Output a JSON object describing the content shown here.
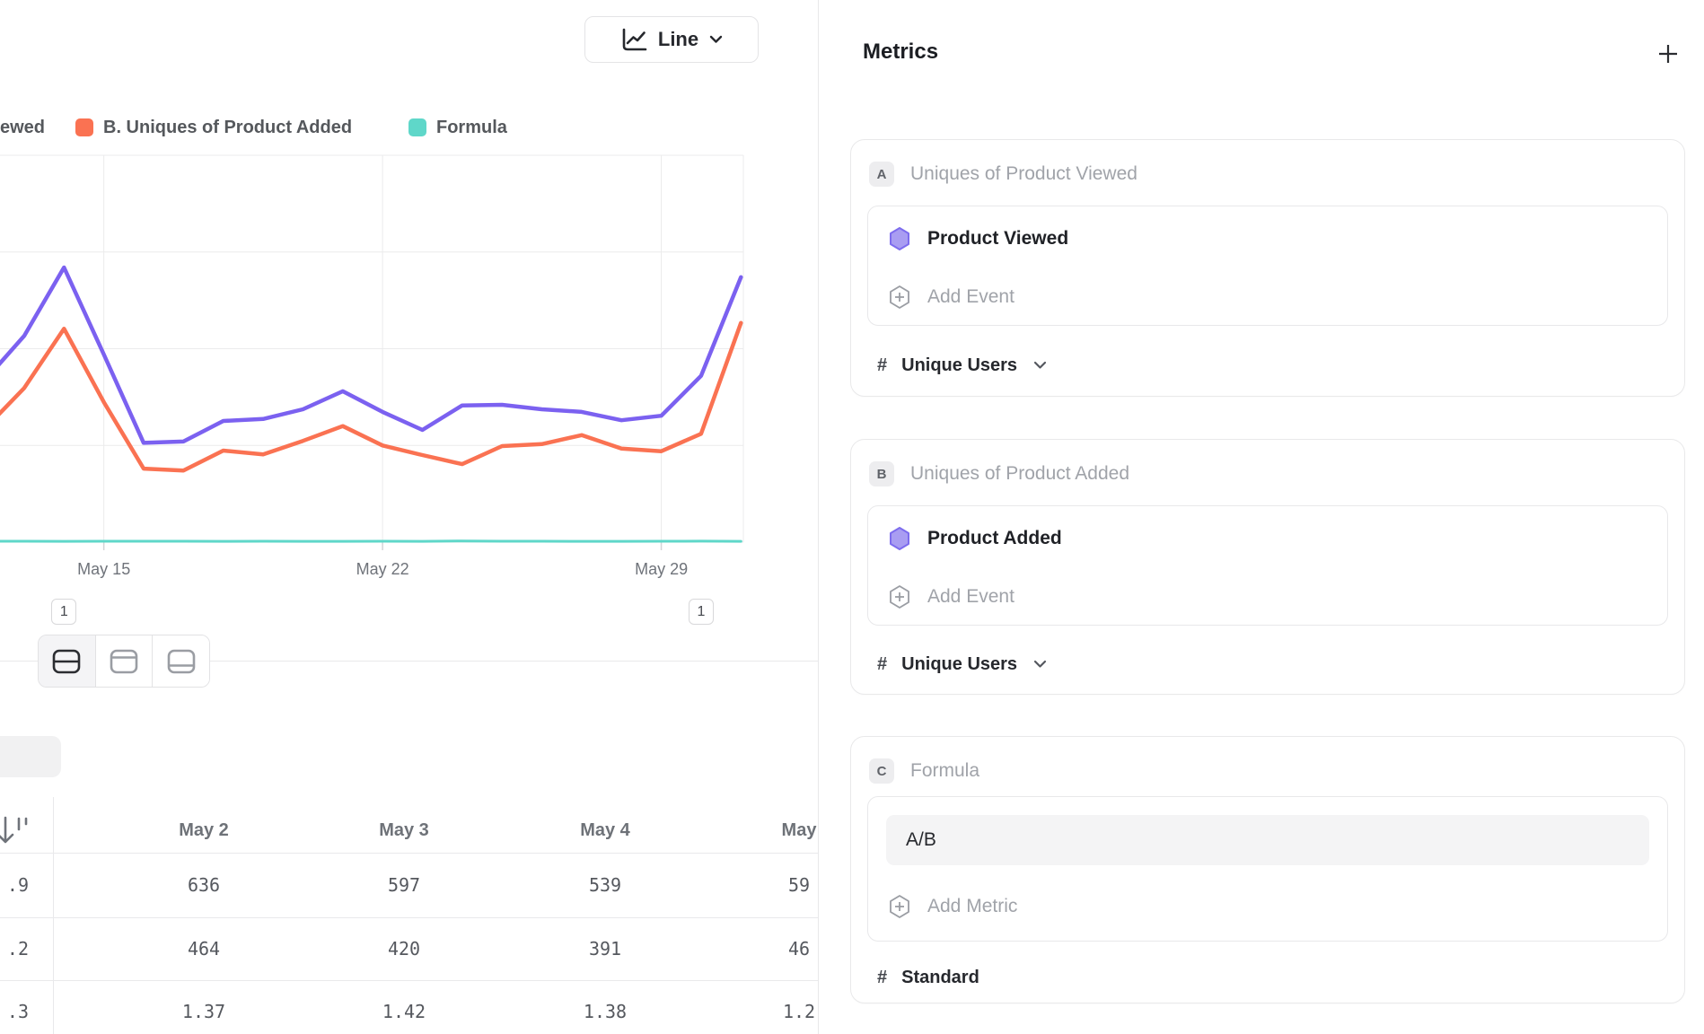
{
  "chart_controls": {
    "type_label": "Line"
  },
  "legend": {
    "items": [
      {
        "label": "ewed",
        "swatch": false,
        "color": ""
      },
      {
        "label": "B. Uniques of Product Added",
        "swatch": true,
        "color": "#fa7252"
      },
      {
        "label": "Formula",
        "swatch": true,
        "color": "#5fd7c9"
      }
    ]
  },
  "chart_data": {
    "type": "line",
    "x": [
      "May 12",
      "May 13",
      "May 14",
      "May 15",
      "May 16",
      "May 17",
      "May 18",
      "May 19",
      "May 20",
      "May 21",
      "May 22",
      "May 23",
      "May 24",
      "May 25",
      "May 26",
      "May 27",
      "May 28",
      "May 29",
      "May 30",
      "May 31"
    ],
    "x_tick_labels": [
      "May 15",
      "May 22",
      "May 29"
    ],
    "series": [
      {
        "name": "A. Uniques of Product Viewed",
        "color": "#7b61f0",
        "values": [
          250,
          320,
          426,
          291,
          154,
          156,
          188,
          191,
          206,
          234,
          202,
          174,
          212,
          213,
          206,
          202,
          189,
          196,
          258,
          411
        ]
      },
      {
        "name": "B. Uniques of Product Added",
        "color": "#fa7252",
        "values": [
          175,
          239,
          331,
          217,
          114,
          111,
          142,
          136,
          157,
          180,
          150,
          135,
          121,
          149,
          152,
          166,
          145,
          141,
          168,
          340
        ]
      },
      {
        "name": "C. Formula (A/B)",
        "color": "#5fd7c9",
        "values": [
          1.43,
          1.34,
          1.29,
          1.34,
          1.35,
          1.41,
          1.32,
          1.4,
          1.31,
          1.3,
          1.35,
          1.29,
          1.75,
          1.43,
          1.35,
          1.22,
          1.3,
          1.43,
          1.54,
          1.21
        ]
      }
    ],
    "ylim": [
      0,
      600
    ],
    "y_gridline_step": 150,
    "grid": true,
    "legend_position": "top",
    "annotations": [
      {
        "label": "1",
        "x": "May 14"
      },
      {
        "label": "1",
        "x": "May 30"
      }
    ]
  },
  "table": {
    "columns": [
      "May 2",
      "May 3",
      "May 4",
      "May"
    ],
    "rows": [
      {
        "label_fragment": ".9",
        "values": [
          "636",
          "597",
          "539",
          "59"
        ]
      },
      {
        "label_fragment": ".2",
        "values": [
          "464",
          "420",
          "391",
          "46"
        ]
      },
      {
        "label_fragment": ".3",
        "values": [
          "1.37",
          "1.42",
          "1.38",
          "1.2"
        ]
      }
    ]
  },
  "metrics_panel": {
    "title": "Metrics",
    "cards": [
      {
        "badge": "A",
        "title": "Uniques of Product Viewed",
        "event": "Product Viewed",
        "add_label": "Add Event",
        "measure_prefix": "#",
        "measure": "Unique Users"
      },
      {
        "badge": "B",
        "title": "Uniques of Product Added",
        "event": "Product Added",
        "add_label": "Add Event",
        "measure_prefix": "#",
        "measure": "Unique Users"
      },
      {
        "badge": "C",
        "title": "Formula",
        "formula": "A/B",
        "add_label": "Add Metric",
        "measure_prefix": "#",
        "measure": "Standard"
      }
    ]
  },
  "colors": {
    "accent_purple": "#7b61f0",
    "accent_orange": "#fa7252",
    "accent_teal": "#5fd7c9"
  }
}
